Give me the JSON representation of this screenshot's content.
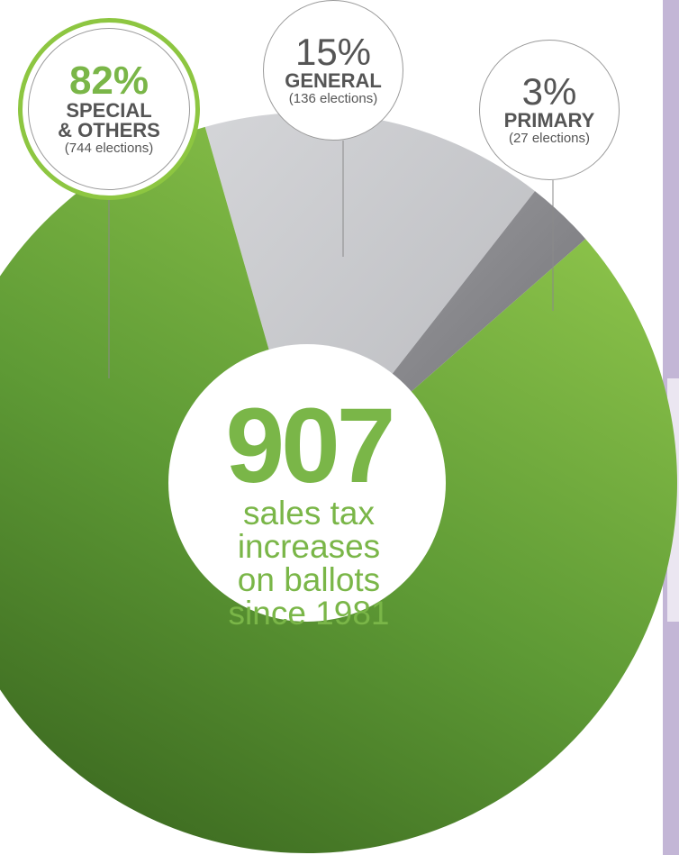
{
  "chart_data": {
    "type": "pie",
    "slices": [
      {
        "label": "SPECIAL & OTHERS",
        "percent": 82,
        "elections": 744,
        "percent_text": "82%",
        "count_text": "(744 elections)",
        "label_lines": [
          "SPECIAL",
          "& OTHERS"
        ]
      },
      {
        "label": "GENERAL",
        "percent": 15,
        "elections": 136,
        "percent_text": "15%",
        "count_text": "(136 elections)",
        "label_lines": [
          "GENERAL"
        ]
      },
      {
        "label": "PRIMARY",
        "percent": 3,
        "elections": 27,
        "percent_text": "3%",
        "count_text": "(27 elections)",
        "label_lines": [
          "PRIMARY"
        ]
      }
    ],
    "center": {
      "total": "907",
      "caption_lines": [
        "sales tax",
        "increases",
        "on ballots",
        "since 1981"
      ]
    }
  },
  "colors": {
    "special": "#6aa63d",
    "general": "#c9cacd",
    "primary": "#858589",
    "accent": "#8dc641",
    "text_gray": "#555555"
  }
}
